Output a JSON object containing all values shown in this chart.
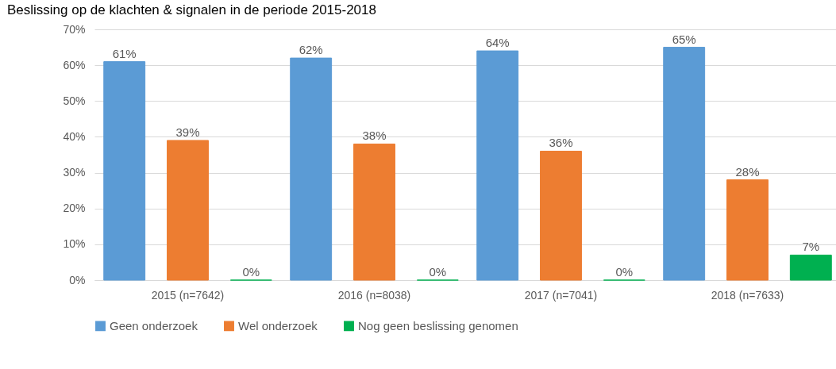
{
  "chart_data": {
    "type": "bar",
    "title": "Beslissing op de klachten & signalen in de periode 2015-2018",
    "categories": [
      "2015 (n=7642)",
      "2016 (n=8038)",
      "2017 (n=7041)",
      "2018 (n=7633)"
    ],
    "series": [
      {
        "name": "Geen onderzoek",
        "color": "#5b9bd5",
        "values": [
          61,
          62,
          64,
          65
        ],
        "value_labels": [
          "61%",
          "62%",
          "64%",
          "65%"
        ]
      },
      {
        "name": "Wel onderzoek",
        "color": "#ed7d31",
        "values": [
          39,
          38,
          36,
          28
        ],
        "value_labels": [
          "39%",
          "38%",
          "36%",
          "28%"
        ]
      },
      {
        "name": "Nog geen beslissing genomen",
        "color": "#00b050",
        "values": [
          0,
          0,
          0,
          7
        ],
        "value_labels": [
          "0%",
          "0%",
          "0%",
          "7%"
        ]
      }
    ],
    "ylim": [
      0,
      70
    ],
    "yticks": [
      {
        "value": 0,
        "label": "0%"
      },
      {
        "value": 10,
        "label": "10%"
      },
      {
        "value": 20,
        "label": "20%"
      },
      {
        "value": 30,
        "label": "30%"
      },
      {
        "value": 40,
        "label": "40%"
      },
      {
        "value": 50,
        "label": "50%"
      },
      {
        "value": 60,
        "label": "60%"
      },
      {
        "value": 70,
        "label": "70%"
      }
    ],
    "grid": "y",
    "legend": "bottom"
  }
}
